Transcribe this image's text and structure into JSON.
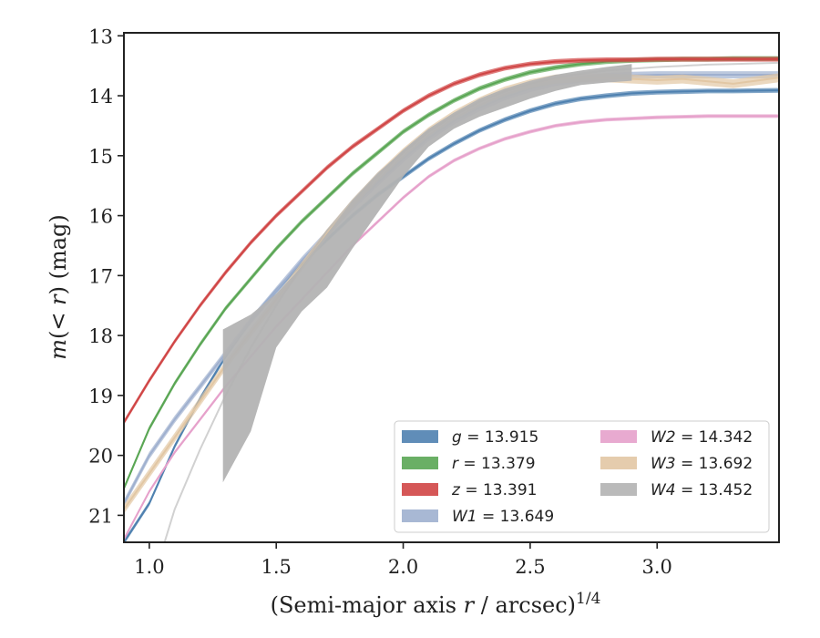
{
  "chart_data": {
    "type": "line",
    "xlabel_main": "(Semi-major axis ",
    "xlabel_var": "r",
    "xlabel_tail": " / arcsec)",
    "xlabel_exp": "1/4",
    "ylabel_main": "m",
    "ylabel_paren": "(< ",
    "ylabel_var": "r",
    "ylabel_tail": ") (mag)",
    "xlim": [
      0.9,
      3.48
    ],
    "ylim": [
      21.45,
      12.95
    ],
    "y_inverted": true,
    "grid": false,
    "legend_placement": "lower-right",
    "x_ticks": [
      "1.0",
      "1.5",
      "2.0",
      "2.5",
      "3.0"
    ],
    "y_ticks": [
      "13",
      "14",
      "15",
      "16",
      "17",
      "18",
      "19",
      "20",
      "21"
    ],
    "series": [
      {
        "name": "g",
        "legend_value": "13.915",
        "color": "#4f81b0",
        "width": 0.08,
        "x": [
          0.9,
          1.0,
          1.1,
          1.2,
          1.3,
          1.4,
          1.5,
          1.6,
          1.7,
          1.8,
          1.9,
          2.0,
          2.1,
          2.2,
          2.3,
          2.4,
          2.5,
          2.6,
          2.7,
          2.8,
          2.9,
          3.0,
          3.1,
          3.2,
          3.3,
          3.48
        ],
        "y": [
          21.45,
          20.8,
          19.85,
          19.05,
          18.35,
          17.75,
          17.25,
          16.8,
          16.4,
          16.0,
          15.65,
          15.35,
          15.05,
          14.8,
          14.58,
          14.4,
          14.25,
          14.13,
          14.05,
          14.0,
          13.96,
          13.94,
          13.93,
          13.92,
          13.92,
          13.91
        ]
      },
      {
        "name": "r",
        "legend_value": "13.379",
        "color": "#5aa654",
        "width": 0.08,
        "x": [
          0.9,
          1.0,
          1.1,
          1.2,
          1.3,
          1.4,
          1.5,
          1.6,
          1.7,
          1.8,
          1.9,
          2.0,
          2.1,
          2.2,
          2.3,
          2.4,
          2.5,
          2.6,
          2.7,
          2.8,
          2.9,
          3.0,
          3.1,
          3.2,
          3.3,
          3.48
        ],
        "y": [
          20.55,
          19.55,
          18.8,
          18.15,
          17.55,
          17.05,
          16.55,
          16.1,
          15.7,
          15.3,
          14.95,
          14.6,
          14.32,
          14.08,
          13.88,
          13.73,
          13.61,
          13.53,
          13.47,
          13.43,
          13.41,
          13.4,
          13.39,
          13.39,
          13.38,
          13.38
        ]
      },
      {
        "name": "z",
        "legend_value": "13.391",
        "color": "#d04545",
        "width": 0.08,
        "x": [
          0.9,
          1.0,
          1.1,
          1.2,
          1.3,
          1.4,
          1.5,
          1.6,
          1.7,
          1.8,
          1.9,
          2.0,
          2.1,
          2.2,
          2.3,
          2.4,
          2.5,
          2.6,
          2.7,
          2.8,
          2.9,
          3.0,
          3.1,
          3.2,
          3.3,
          3.48
        ],
        "y": [
          19.45,
          18.75,
          18.1,
          17.5,
          16.95,
          16.45,
          16.0,
          15.6,
          15.2,
          14.85,
          14.55,
          14.25,
          14.0,
          13.8,
          13.65,
          13.54,
          13.47,
          13.43,
          13.41,
          13.4,
          13.4,
          13.39,
          13.39,
          13.39,
          13.39,
          13.39
        ]
      },
      {
        "name": "W1",
        "legend_value": "13.649",
        "color": "#9fb0cf",
        "width": 0.12,
        "x": [
          0.9,
          1.0,
          1.1,
          1.2,
          1.3,
          1.4,
          1.5,
          1.6,
          1.7,
          1.8,
          1.9,
          2.0,
          2.1,
          2.2,
          2.3,
          2.4,
          2.5,
          2.6,
          2.7,
          2.8,
          2.9,
          3.0,
          3.1,
          3.2,
          3.3,
          3.48
        ],
        "y": [
          20.8,
          20.0,
          19.4,
          18.85,
          18.3,
          17.75,
          17.25,
          16.75,
          16.3,
          15.85,
          15.45,
          15.05,
          14.7,
          14.42,
          14.2,
          14.02,
          13.88,
          13.78,
          13.72,
          13.68,
          13.66,
          13.65,
          13.65,
          13.65,
          13.65,
          13.65
        ]
      },
      {
        "name": "W2",
        "legend_value": "14.342",
        "color": "#e6a1cb",
        "width": 0.06,
        "x": [
          0.9,
          1.0,
          1.1,
          1.2,
          1.3,
          1.4,
          1.5,
          1.6,
          1.7,
          1.8,
          1.9,
          2.0,
          2.1,
          2.2,
          2.3,
          2.4,
          2.5,
          2.6,
          2.7,
          2.8,
          2.9,
          3.0,
          3.1,
          3.2,
          3.3,
          3.48
        ],
        "y": [
          21.4,
          20.6,
          19.95,
          19.4,
          18.85,
          18.35,
          17.85,
          17.4,
          16.95,
          16.5,
          16.1,
          15.7,
          15.35,
          15.08,
          14.88,
          14.72,
          14.6,
          14.5,
          14.44,
          14.4,
          14.38,
          14.36,
          14.35,
          14.34,
          14.34,
          14.34
        ]
      },
      {
        "name": "W3",
        "legend_value": "13.692",
        "color": "#e2c7a4",
        "width": 0.15,
        "x": [
          0.9,
          1.0,
          1.1,
          1.2,
          1.3,
          1.4,
          1.5,
          1.6,
          1.7,
          1.8,
          1.9,
          2.0,
          2.1,
          2.2,
          2.3,
          2.4,
          2.5,
          2.6,
          2.7,
          2.8,
          2.9,
          3.0,
          3.1,
          3.2,
          3.3,
          3.48
        ],
        "y": [
          20.9,
          20.3,
          19.7,
          19.1,
          18.5,
          17.95,
          17.4,
          16.85,
          16.3,
          15.8,
          15.35,
          14.95,
          14.6,
          14.32,
          14.1,
          13.92,
          13.8,
          13.72,
          13.7,
          13.7,
          13.72,
          13.74,
          13.72,
          13.76,
          13.8,
          13.7
        ]
      },
      {
        "name": "W4",
        "legend_value": "13.452",
        "color": "#b3b3b3",
        "width": 0.0,
        "x": [
          1.06,
          1.1,
          1.2,
          1.3,
          1.4,
          1.5,
          1.6,
          1.7,
          1.8,
          1.9,
          2.0,
          2.1,
          2.2,
          2.3,
          2.4,
          2.5,
          2.6,
          2.7,
          2.8,
          2.9,
          3.0,
          3.1,
          3.2,
          3.3,
          3.48
        ],
        "y": [
          21.45,
          20.9,
          19.9,
          19.0,
          18.2,
          17.5,
          16.85,
          16.25,
          15.75,
          15.3,
          14.95,
          14.6,
          14.33,
          14.1,
          13.93,
          13.8,
          13.7,
          13.63,
          13.58,
          13.55,
          13.52,
          13.5,
          13.48,
          13.47,
          13.45
        ],
        "band_x": [
          1.29,
          1.4,
          1.5,
          1.6,
          1.7,
          1.8,
          1.9,
          2.0,
          2.1,
          2.2,
          2.3,
          2.4,
          2.5,
          2.6,
          2.7,
          2.8,
          2.9
        ],
        "band_upper": [
          17.9,
          17.65,
          17.3,
          16.85,
          16.3,
          15.75,
          15.3,
          14.9,
          14.55,
          14.28,
          14.05,
          13.88,
          13.75,
          13.65,
          13.58,
          13.52,
          13.47
        ],
        "band_lower": [
          20.45,
          19.6,
          18.2,
          17.6,
          17.2,
          16.55,
          15.95,
          15.35,
          14.85,
          14.55,
          14.35,
          14.2,
          14.05,
          13.92,
          13.82,
          13.78,
          13.75
        ]
      }
    ]
  }
}
